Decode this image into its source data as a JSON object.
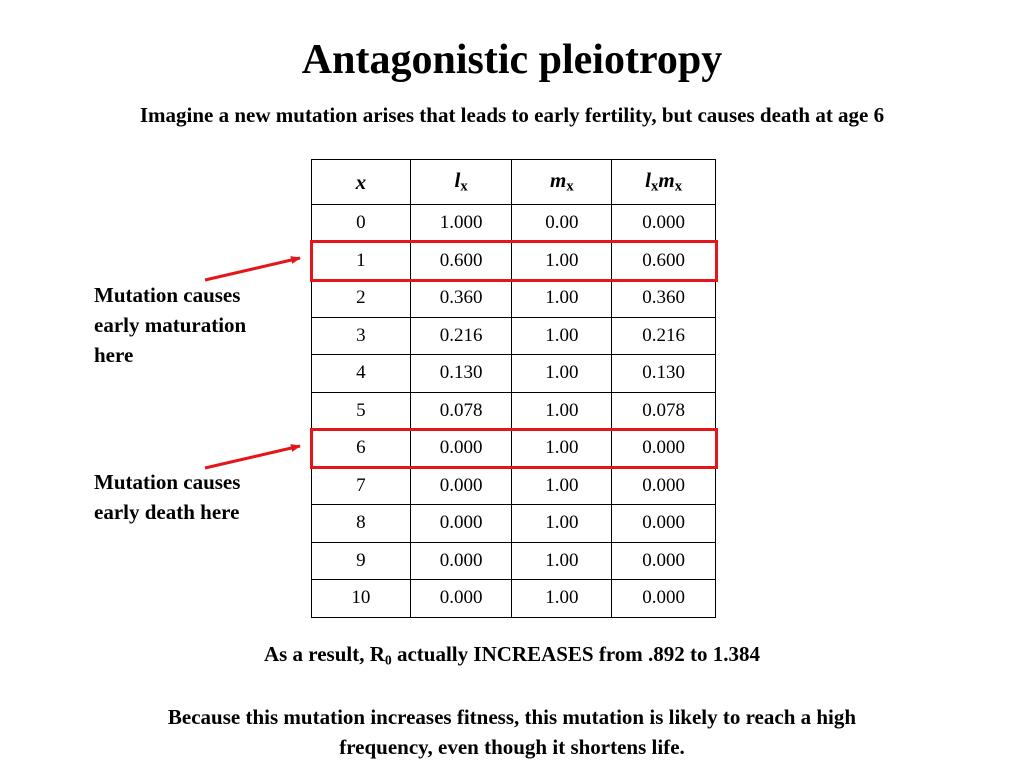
{
  "title": "Antagonistic pleiotropy",
  "subtitle": "Imagine a new mutation arises that leads to early fertility, but causes death at age 6",
  "table": {
    "headers": [
      {
        "main": "x",
        "sub": ""
      },
      {
        "main": "l",
        "sub": "x"
      },
      {
        "main": "m",
        "sub": "x"
      },
      {
        "main": "l",
        "sub": "x",
        "main2": "m",
        "sub2": "x"
      }
    ],
    "rows": [
      [
        "0",
        "1.000",
        "0.00",
        "0.000"
      ],
      [
        "1",
        "0.600",
        "1.00",
        "0.600"
      ],
      [
        "2",
        "0.360",
        "1.00",
        "0.360"
      ],
      [
        "3",
        "0.216",
        "1.00",
        "0.216"
      ],
      [
        "4",
        "0.130",
        "1.00",
        "0.130"
      ],
      [
        "5",
        "0.078",
        "1.00",
        "0.078"
      ],
      [
        "6",
        "0.000",
        "1.00",
        "0.000"
      ],
      [
        "7",
        "0.000",
        "1.00",
        "0.000"
      ],
      [
        "8",
        "0.000",
        "1.00",
        "0.000"
      ],
      [
        "9",
        "0.000",
        "1.00",
        "0.000"
      ],
      [
        "10",
        "0.000",
        "1.00",
        "0.000"
      ]
    ],
    "highlight_color": "#e4161a"
  },
  "annotations": {
    "maturation": {
      "lines": [
        "Mutation causes",
        "early maturation",
        "here"
      ]
    },
    "death": {
      "lines": [
        "Mutation causes",
        "early death here"
      ]
    }
  },
  "result": {
    "prefix": "As a result, R",
    "sub": "0",
    "suffix": " actually INCREASES from .892 to 1.384"
  },
  "conclusion": {
    "lines": [
      "Because this mutation increases fitness, this mutation is likely to reach a high",
      "frequency, even though it shortens life."
    ]
  }
}
